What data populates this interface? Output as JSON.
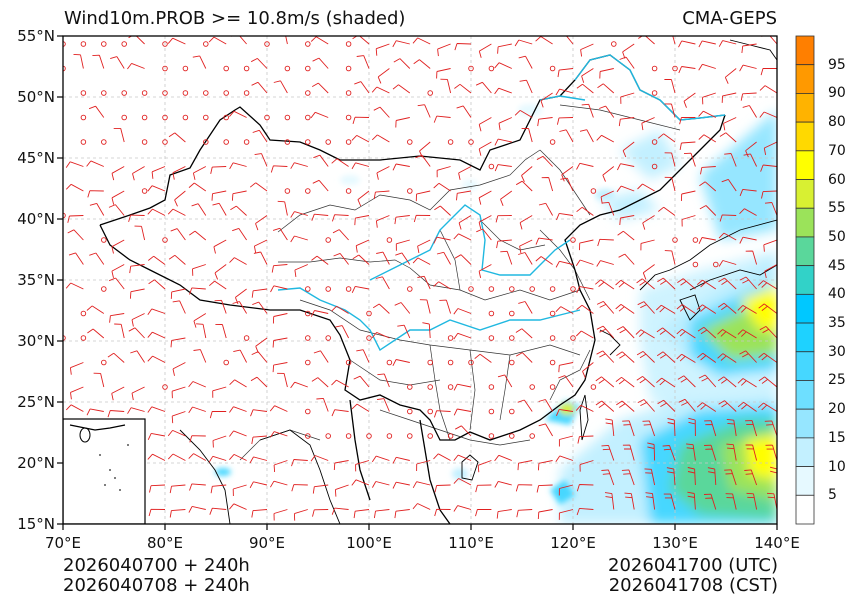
{
  "header": {
    "title_left": "Wind10m.PROB >= 10.8m/s (shaded)",
    "title_right": "CMA-GEPS"
  },
  "axes": {
    "lat_labels": [
      "55°N",
      "50°N",
      "45°N",
      "40°N",
      "35°N",
      "30°N",
      "25°N",
      "20°N",
      "15°N"
    ],
    "lon_labels": [
      "70°E",
      "80°E",
      "90°E",
      "100°E",
      "110°E",
      "120°E",
      "130°E",
      "140°E"
    ],
    "lat_range": [
      15,
      55
    ],
    "lon_range": [
      70,
      140
    ]
  },
  "footer": {
    "init_utc": "2026040700 + 240h",
    "init_cst": "2026040708 + 240h",
    "valid_utc": "2026041700 (UTC)",
    "valid_cst": "2026041708 (CST)"
  },
  "colorbar": {
    "labels": [
      "95",
      "90",
      "80",
      "70",
      "60",
      "55",
      "50",
      "45",
      "40",
      "35",
      "30",
      "25",
      "20",
      "15",
      "10",
      "5"
    ],
    "colors": [
      "#ff7f00",
      "#ff9900",
      "#ffb300",
      "#ffd900",
      "#ffff00",
      "#d8f032",
      "#9be35a",
      "#5ad79b",
      "#32d2c8",
      "#00c8ff",
      "#1ed2ff",
      "#46d7ff",
      "#6edfff",
      "#96e6ff",
      "#c3f0ff",
      "#e6f9ff",
      "#ffffff"
    ]
  },
  "map": {
    "shading_color_light": "#c3f0ff",
    "shading_color_mid": "#46d7ff",
    "shading_color_high": "#9be35a",
    "shading_color_max": "#ffff00",
    "barb_color": "#e02020",
    "river_color": "#20b8e0",
    "boundary_color": "#000000"
  }
}
